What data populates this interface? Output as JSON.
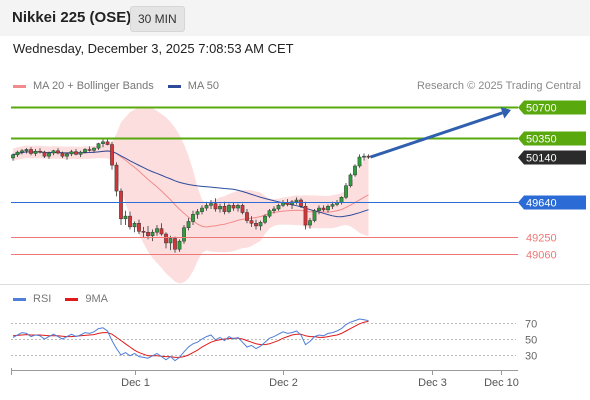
{
  "header": {
    "instrument": "Nikkei 225 (OSE)",
    "timeframe": "30 MIN",
    "timestamp": "Wednesday, December 3, 2025 7:08:53 AM CET"
  },
  "legend": {
    "ma20": "MA 20 + Bollinger Bands",
    "ma50": "MA 50",
    "credit": "Research © 2025 Trading Central",
    "rsi": "RSI",
    "rsi_ma": "9MA"
  },
  "colors": {
    "candle_up": "#2e9e3e",
    "candle_down": "#d4353a",
    "ma20": "#f28b8b",
    "ma50": "#2e4b9b",
    "bollinger_fill": "#fcd8d8",
    "resistance": "#58a80e",
    "pivot": "#2a6bd6",
    "support": "#ee7777",
    "current_tag": "#2b2b2b",
    "arrow": "#2f5fae",
    "rsi_line": "#4f7fd8",
    "rsi_ma_line": "#e01a1a"
  },
  "chart_data": [
    {
      "type": "candlestick",
      "title": "Nikkei 225 (OSE)",
      "x_ticks": [
        "Dec 1",
        "Dec 2",
        "Dec 3",
        "Dec 10"
      ],
      "ylim": [
        48900,
        50800
      ],
      "levels": [
        {
          "value": 50700,
          "label": "50700",
          "kind": "resistance"
        },
        {
          "value": 50350,
          "label": "50350",
          "kind": "resistance"
        },
        {
          "value": 50140,
          "label": "50140",
          "kind": "current"
        },
        {
          "value": 49640,
          "label": "49640",
          "kind": "pivot"
        },
        {
          "value": 49250,
          "label": "49250",
          "kind": "support"
        },
        {
          "value": 49060,
          "label": "49060",
          "kind": "support"
        }
      ],
      "forecast_arrow": {
        "from": 50140,
        "to": 50700
      },
      "candles": [
        [
          50130,
          50180,
          50100,
          50165
        ],
        [
          50165,
          50210,
          50140,
          50195
        ],
        [
          50195,
          50230,
          50170,
          50210
        ],
        [
          50210,
          50240,
          50180,
          50225
        ],
        [
          50225,
          50250,
          50160,
          50180
        ],
        [
          50180,
          50230,
          50150,
          50205
        ],
        [
          50205,
          50240,
          50180,
          50195
        ],
        [
          50195,
          50210,
          50130,
          50150
        ],
        [
          50150,
          50200,
          50120,
          50185
        ],
        [
          50185,
          50220,
          50160,
          50210
        ],
        [
          50210,
          50240,
          50170,
          50185
        ],
        [
          50185,
          50200,
          50130,
          50150
        ],
        [
          50150,
          50190,
          50110,
          50175
        ],
        [
          50175,
          50220,
          50150,
          50200
        ],
        [
          50200,
          50230,
          50160,
          50170
        ],
        [
          50170,
          50210,
          50140,
          50195
        ],
        [
          50195,
          50240,
          50180,
          50225
        ],
        [
          50225,
          50260,
          50200,
          50215
        ],
        [
          50215,
          50250,
          50190,
          50240
        ],
        [
          50240,
          50300,
          50220,
          50290
        ],
        [
          50290,
          50340,
          50250,
          50310
        ],
        [
          50310,
          50340,
          50270,
          50280
        ],
        [
          50280,
          50310,
          50000,
          50050
        ],
        [
          50050,
          50080,
          49700,
          49760
        ],
        [
          49760,
          49790,
          49380,
          49450
        ],
        [
          49450,
          49540,
          49380,
          49480
        ],
        [
          49480,
          49530,
          49330,
          49360
        ],
        [
          49360,
          49420,
          49300,
          49400
        ],
        [
          49400,
          49440,
          49280,
          49310
        ],
        [
          49310,
          49360,
          49240,
          49300
        ],
        [
          49300,
          49370,
          49220,
          49260
        ],
        [
          49260,
          49330,
          49200,
          49300
        ],
        [
          49300,
          49380,
          49260,
          49340
        ],
        [
          49340,
          49400,
          49260,
          49280
        ],
        [
          49280,
          49300,
          49120,
          49180
        ],
        [
          49180,
          49260,
          49100,
          49230
        ],
        [
          49230,
          49250,
          49070,
          49110
        ],
        [
          49110,
          49220,
          49080,
          49200
        ],
        [
          49200,
          49380,
          49170,
          49350
        ],
        [
          49350,
          49460,
          49320,
          49420
        ],
        [
          49420,
          49540,
          49380,
          49500
        ],
        [
          49500,
          49560,
          49450,
          49530
        ],
        [
          49530,
          49600,
          49500,
          49570
        ],
        [
          49570,
          49640,
          49540,
          49600
        ],
        [
          49600,
          49660,
          49560,
          49620
        ],
        [
          49620,
          49680,
          49530,
          49560
        ],
        [
          49560,
          49620,
          49520,
          49590
        ],
        [
          49590,
          49640,
          49500,
          49530
        ],
        [
          49530,
          49620,
          49510,
          49600
        ],
        [
          49600,
          49630,
          49540,
          49570
        ],
        [
          49570,
          49620,
          49530,
          49600
        ],
        [
          49600,
          49620,
          49500,
          49520
        ],
        [
          49520,
          49560,
          49400,
          49430
        ],
        [
          49430,
          49480,
          49360,
          49400
        ],
        [
          49400,
          49440,
          49330,
          49370
        ],
        [
          49370,
          49430,
          49320,
          49410
        ],
        [
          49410,
          49500,
          49390,
          49480
        ],
        [
          49480,
          49560,
          49460,
          49540
        ],
        [
          49540,
          49590,
          49510,
          49560
        ],
        [
          49560,
          49620,
          49540,
          49600
        ],
        [
          49600,
          49660,
          49580,
          49630
        ],
        [
          49630,
          49670,
          49590,
          49610
        ],
        [
          49610,
          49660,
          49560,
          49640
        ],
        [
          49640,
          49690,
          49610,
          49660
        ],
        [
          49660,
          49680,
          49570,
          49590
        ],
        [
          49590,
          49640,
          49330,
          49380
        ],
        [
          49380,
          49460,
          49340,
          49430
        ],
        [
          49430,
          49560,
          49410,
          49540
        ],
        [
          49540,
          49600,
          49500,
          49570
        ],
        [
          49570,
          49600,
          49530,
          49550
        ],
        [
          49550,
          49610,
          49520,
          49590
        ],
        [
          49590,
          49640,
          49560,
          49610
        ],
        [
          49610,
          49660,
          49590,
          49630
        ],
        [
          49630,
          49700,
          49610,
          49690
        ],
        [
          49690,
          49850,
          49670,
          49820
        ],
        [
          49820,
          49960,
          49800,
          49940
        ],
        [
          49940,
          50060,
          49920,
          50040
        ],
        [
          50040,
          50170,
          50020,
          50140
        ],
        [
          50140,
          50180,
          50100,
          50150
        ],
        [
          50150,
          50170,
          50120,
          50140
        ]
      ]
    },
    {
      "type": "line",
      "title": "RSI",
      "x_ticks": [
        "Dec 1",
        "Dec 2",
        "Dec 3",
        "Dec 10"
      ],
      "ylim": [
        15,
        85
      ],
      "y_ticks": [
        30,
        50,
        70
      ],
      "series": [
        {
          "name": "RSI",
          "values": [
            52,
            55,
            58,
            57,
            53,
            55,
            54,
            50,
            53,
            56,
            53,
            50,
            53,
            56,
            53,
            55,
            58,
            57,
            59,
            63,
            64,
            60,
            48,
            38,
            30,
            33,
            29,
            32,
            28,
            27,
            26,
            29,
            32,
            28,
            24,
            28,
            23,
            27,
            34,
            40,
            44,
            46,
            50,
            53,
            55,
            49,
            52,
            48,
            53,
            50,
            52,
            46,
            40,
            42,
            38,
            41,
            46,
            51,
            53,
            56,
            59,
            57,
            58,
            60,
            55,
            43,
            47,
            53,
            55,
            54,
            57,
            58,
            60,
            63,
            68,
            71,
            73,
            75,
            74,
            73
          ]
        },
        {
          "name": "9MA",
          "values": [
            54,
            54.5,
            55,
            55.5,
            55,
            55,
            55,
            54.5,
            54,
            54,
            54,
            53.5,
            53,
            53,
            53.5,
            54,
            54.5,
            55,
            55.5,
            57,
            58,
            58,
            56,
            52,
            48,
            44,
            40,
            36,
            33,
            31,
            29,
            29,
            29,
            28.5,
            28,
            28,
            27,
            27,
            28,
            30,
            33,
            36,
            40,
            43,
            46,
            48,
            49,
            50,
            50.5,
            51,
            51,
            50,
            48,
            46,
            44,
            43,
            43,
            44,
            46,
            48,
            51,
            53,
            55,
            56,
            56,
            54,
            53,
            53,
            52,
            52,
            53,
            54,
            55,
            57,
            60,
            63,
            66,
            69,
            71,
            72
          ]
        }
      ]
    }
  ]
}
